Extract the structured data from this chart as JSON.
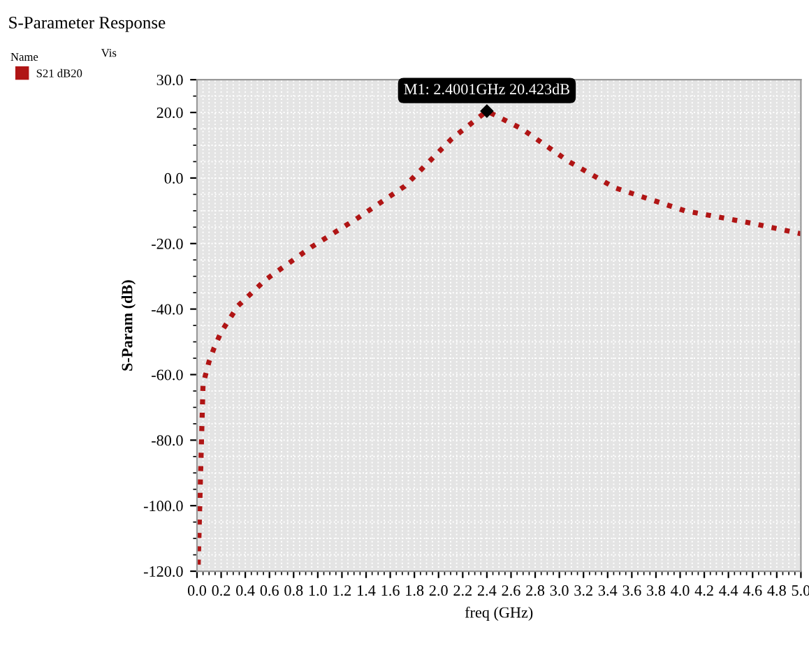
{
  "chart_data": {
    "type": "line",
    "title": "S-Parameter Response",
    "xlabel": "freq (GHz)",
    "ylabel": "S-Param (dB)",
    "legend_title": "Name",
    "legend": "top left",
    "grid": true,
    "line_style": "dotted",
    "marker": "none",
    "annotations": [
      "Vis",
      {
        "text": "M1: 2.4001GHz 20.423dB",
        "x": 2.4001,
        "y": 20.423
      }
    ],
    "xlim": [
      0,
      5
    ],
    "ylim": [
      -120,
      30
    ],
    "xticks": [
      {
        "value": 0,
        "label": "0.0"
      },
      {
        "value": 0.2,
        "label": "0.2"
      },
      {
        "value": 0.4,
        "label": "0.4"
      },
      {
        "value": 0.6,
        "label": "0.6"
      },
      {
        "value": 0.8,
        "label": "0.8"
      },
      {
        "value": 1.0,
        "label": "1.0"
      },
      {
        "value": 1.2,
        "label": "1.2"
      },
      {
        "value": 1.4,
        "label": "1.4"
      },
      {
        "value": 1.6,
        "label": "1.6"
      },
      {
        "value": 1.8,
        "label": "1.8"
      },
      {
        "value": 2.0,
        "label": "2.0"
      },
      {
        "value": 2.2,
        "label": "2.2"
      },
      {
        "value": 2.4,
        "label": "2.4"
      },
      {
        "value": 2.6,
        "label": "2.6"
      },
      {
        "value": 2.8,
        "label": "2.8"
      },
      {
        "value": 3.0,
        "label": "3.0"
      },
      {
        "value": 3.2,
        "label": "3.2"
      },
      {
        "value": 3.4,
        "label": "3.4"
      },
      {
        "value": 3.6,
        "label": "3.6"
      },
      {
        "value": 3.8,
        "label": "3.8"
      },
      {
        "value": 4.0,
        "label": "4.0"
      },
      {
        "value": 4.2,
        "label": "4.2"
      },
      {
        "value": 4.4,
        "label": "4.4"
      },
      {
        "value": 4.6,
        "label": "4.6"
      },
      {
        "value": 4.8,
        "label": "4.8"
      },
      {
        "value": 5.0,
        "label": "5.0"
      }
    ],
    "yticks": [
      {
        "value": 30,
        "label": "30.0"
      },
      {
        "value": 20,
        "label": "20.0"
      },
      {
        "value": 0,
        "label": "0.0"
      },
      {
        "value": -20,
        "label": "-20.0"
      },
      {
        "value": -40,
        "label": "-40.0"
      },
      {
        "value": -60,
        "label": "-60.0"
      },
      {
        "value": -80,
        "label": "-80.0"
      },
      {
        "value": -100,
        "label": "-100.0"
      },
      {
        "value": -120,
        "label": "-120.0"
      }
    ],
    "series": [
      {
        "name": "S21 dB20",
        "color": "#b01515",
        "x": [
          0.01,
          0.03,
          0.05,
          0.1,
          0.14,
          0.2,
          0.34,
          0.57,
          0.95,
          1.34,
          1.72,
          2.11,
          2.4001,
          2.69,
          3.08,
          3.46,
          4.04,
          4.62,
          5.0
        ],
        "values": [
          -118,
          -90,
          -63,
          -56,
          -52,
          -47,
          -39,
          -31,
          -21,
          -12,
          -2.5,
          12,
          20.423,
          15,
          5,
          -3,
          -10,
          -14,
          -17
        ]
      }
    ]
  }
}
